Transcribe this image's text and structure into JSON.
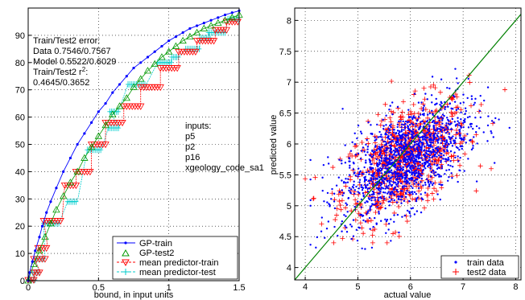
{
  "chart_data": [
    {
      "type": "line",
      "xlabel": "bound, in input units",
      "ylabel": "",
      "xlim": [
        0,
        1.5
      ],
      "ylim": [
        0,
        100
      ],
      "xticks": [
        "0",
        "0.5",
        "1",
        "1.5"
      ],
      "yticks": [
        "0",
        "10",
        "20",
        "30",
        "40",
        "50",
        "60",
        "70",
        "80",
        "90"
      ],
      "grid": true,
      "legend_position": "bottom-right",
      "annotation": {
        "line1": "Train/Test2 error:",
        "line2": "Data  0.7546/0.7567",
        "line3": "Model 0.5522/0.6029",
        "line4_prefix": "Train/Test2 r",
        "line4_sup": "2",
        "line4_suffix": ":",
        "line5": "0.4645/0.3652"
      },
      "inputs": {
        "title": "inputs:",
        "items": [
          "p5",
          "p2",
          "p16",
          "xgeology_code_sa1"
        ]
      },
      "series": [
        {
          "name": "GP-train",
          "color": "#0000ff",
          "marker": "dot",
          "x": [
            0,
            0.01,
            0.03,
            0.05,
            0.08,
            0.1,
            0.13,
            0.16,
            0.2,
            0.25,
            0.3,
            0.35,
            0.4,
            0.45,
            0.5,
            0.55,
            0.6,
            0.65,
            0.7,
            0.75,
            0.8,
            0.85,
            0.9,
            0.95,
            1.0,
            1.05,
            1.1,
            1.15,
            1.2,
            1.25,
            1.3,
            1.35,
            1.4,
            1.45,
            1.5
          ],
          "values": [
            0,
            3,
            7,
            11,
            16,
            20,
            25,
            29,
            34,
            40,
            45,
            50,
            54,
            58,
            62,
            65,
            69,
            72,
            75,
            78,
            80,
            82,
            84,
            86,
            88,
            89.5,
            91,
            92.5,
            93.5,
            94.5,
            95.5,
            96.5,
            97.5,
            98.3,
            99
          ]
        },
        {
          "name": "GP-test2",
          "color": "#009900",
          "marker": "triangle-up",
          "x": [
            0,
            0.04,
            0.08,
            0.12,
            0.16,
            0.2,
            0.25,
            0.3,
            0.35,
            0.4,
            0.45,
            0.5,
            0.55,
            0.6,
            0.65,
            0.7,
            0.75,
            0.8,
            0.85,
            0.9,
            0.95,
            1.0,
            1.05,
            1.1,
            1.15,
            1.2,
            1.25,
            1.3,
            1.35,
            1.4,
            1.45,
            1.5
          ],
          "values": [
            0,
            6,
            11,
            16,
            21,
            26,
            31,
            36,
            40,
            45,
            49,
            53,
            57,
            61,
            64,
            67,
            71,
            74,
            77,
            79.5,
            82,
            84,
            86,
            88,
            89.5,
            91,
            92.5,
            93.5,
            94.5,
            95.5,
            96.5,
            97.5
          ]
        },
        {
          "name": "mean predictor-train",
          "color": "#ff0000",
          "marker": "triangle-down",
          "steps": [
            [
              0,
              0.05,
              0.3
            ],
            [
              0.04,
              0.09,
              3
            ],
            [
              0.04,
              0.12,
              8
            ],
            [
              0.07,
              0.14,
              12
            ],
            [
              0.11,
              0.24,
              22
            ],
            [
              0.26,
              0.34,
              35
            ],
            [
              0.34,
              0.45,
              40
            ],
            [
              0.45,
              0.55,
              50
            ],
            [
              0.55,
              0.68,
              58
            ],
            [
              0.68,
              0.8,
              64
            ],
            [
              0.8,
              0.94,
              71
            ],
            [
              0.94,
              1.07,
              78
            ],
            [
              1.07,
              1.2,
              84
            ],
            [
              1.2,
              1.33,
              88
            ],
            [
              1.33,
              1.41,
              92
            ],
            [
              1.41,
              1.49,
              95
            ]
          ]
        },
        {
          "name": "mean predictor-test",
          "color": "#00cccc",
          "marker": "plus",
          "steps": [
            [
              0,
              0.05,
              0.3
            ],
            [
              0.03,
              0.08,
              3
            ],
            [
              0.05,
              0.12,
              8
            ],
            [
              0.11,
              0.22,
              21
            ],
            [
              0.28,
              0.35,
              29
            ],
            [
              0.42,
              0.52,
              48
            ],
            [
              0.57,
              0.65,
              56
            ],
            [
              0.58,
              0.64,
              62
            ],
            [
              0.71,
              0.84,
              72
            ],
            [
              0.92,
              1.02,
              80
            ],
            [
              1.02,
              1.07,
              82
            ],
            [
              1.12,
              1.22,
              85
            ],
            [
              1.22,
              1.3,
              89
            ],
            [
              1.28,
              1.4,
              91
            ],
            [
              1.42,
              1.5,
              96
            ]
          ]
        }
      ]
    },
    {
      "type": "scatter",
      "xlabel": "actual value",
      "ylabel": "predicted value",
      "xlim": [
        3.8,
        8.1
      ],
      "ylim": [
        3.8,
        8.2
      ],
      "xticks": [
        "4",
        "5",
        "6",
        "7",
        "8"
      ],
      "yticks": [
        "4",
        "4.5",
        "5",
        "5.5",
        "6",
        "6.5",
        "7",
        "7.5",
        "8"
      ],
      "grid": true,
      "legend_position": "bottom-right",
      "diagonal": {
        "color": "#008000",
        "from": [
          3.8,
          3.8
        ],
        "to": [
          8.1,
          8.1
        ]
      },
      "series": [
        {
          "name": "train data",
          "color": "#0000ff",
          "marker": "dot",
          "approx_points": 1500,
          "x_mean": 5.9,
          "x_sd": 0.6,
          "slope": 0.45,
          "y_center": 5.75,
          "y_sd": 0.38,
          "x_range": [
            4.1,
            8.0
          ],
          "y_range": [
            4.3,
            7.6
          ]
        },
        {
          "name": "test2 data",
          "color": "#ff0000",
          "marker": "plus",
          "approx_points": 700,
          "x_mean": 5.9,
          "x_sd": 0.6,
          "slope": 0.42,
          "y_center": 5.75,
          "y_sd": 0.42,
          "x_range": [
            4.0,
            7.9
          ],
          "y_range": [
            4.4,
            7.2
          ]
        }
      ]
    }
  ]
}
